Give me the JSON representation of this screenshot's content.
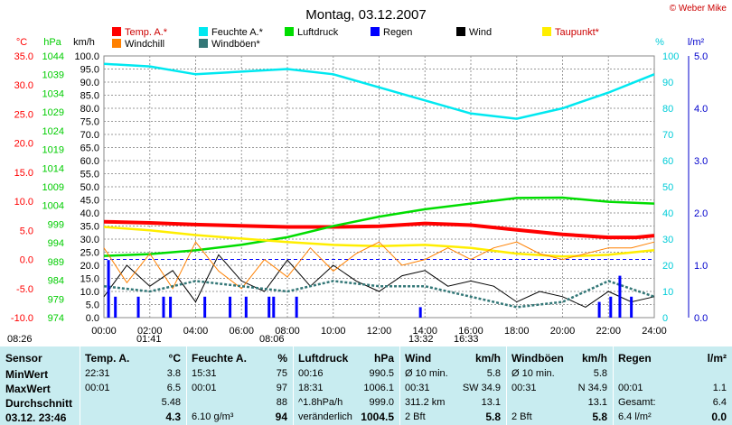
{
  "title": "Montag, 03.12.2007",
  "copyright": "© Weber Mike",
  "colors": {
    "temp": "#ff0000",
    "feuchte": "#00e8f0",
    "luftdruck": "#00dd00",
    "regen": "#0000ff",
    "wind": "#000000",
    "taupunkt": "#ffee00",
    "windchill": "#ff8000",
    "windboeen": "#337777"
  },
  "legend": [
    {
      "label": "Temp. A.*",
      "color": "#ff0000"
    },
    {
      "label": "Feuchte A.*",
      "color": "#00e8f0"
    },
    {
      "label": "Luftdruck",
      "color": "#00dd00"
    },
    {
      "label": "Regen",
      "color": "#0000ff"
    },
    {
      "label": "Wind",
      "color": "#000000"
    },
    {
      "label": "Taupunkt*",
      "color": "#ffee00"
    },
    {
      "label": "Windchill",
      "color": "#ff8000"
    },
    {
      "label": "Windböen*",
      "color": "#337777"
    }
  ],
  "chart_data": {
    "type": "line",
    "x_label_ticks": [
      "00:00",
      "02:00",
      "04:00",
      "06:00",
      "08:00",
      "10:00",
      "12:00",
      "14:00",
      "16:00",
      "18:00",
      "20:00",
      "22:00",
      "24:00"
    ],
    "axes": {
      "celsius": {
        "unit": "°C",
        "ticks": [
          "35.0",
          "30.0",
          "25.0",
          "20.0",
          "15.0",
          "10.0",
          "5.0",
          "0.0",
          "-5.0",
          "-10.0"
        ],
        "range": [
          -10,
          35
        ]
      },
      "hpa": {
        "unit": "hPa",
        "ticks": [
          "1044",
          "1039",
          "1034",
          "1029",
          "1024",
          "1019",
          "1014",
          "1009",
          "1004",
          "999",
          "994",
          "989",
          "984",
          "979",
          "974"
        ],
        "range": [
          974,
          1044
        ]
      },
      "kmh": {
        "unit": "km/h",
        "ticks": [
          "100.0",
          "95.0",
          "90.0",
          "85.0",
          "80.0",
          "75.0",
          "70.0",
          "65.0",
          "60.0",
          "55.0",
          "50.0",
          "45.0",
          "40.0",
          "35.0",
          "30.0",
          "25.0",
          "20.0",
          "15.0",
          "10.0",
          "5.0",
          "0.0"
        ],
        "range": [
          0,
          100
        ]
      },
      "percent": {
        "unit": "%",
        "ticks": [
          "100",
          "90",
          "80",
          "70",
          "60",
          "50",
          "40",
          "30",
          "20",
          "10",
          "0"
        ],
        "range": [
          0,
          100
        ]
      },
      "rain": {
        "unit": "l/m²",
        "ticks": [
          "5.0",
          "4.0",
          "3.0",
          "2.0",
          "1.0",
          "0.0"
        ],
        "range": [
          0,
          5
        ]
      }
    },
    "series": [
      {
        "name": "Temp. A.*",
        "axis": "celsius",
        "x": [
          0,
          2,
          4,
          6,
          8,
          10,
          12,
          14,
          16,
          18,
          20,
          22,
          23.2,
          24
        ],
        "y": [
          6.5,
          6.3,
          6.0,
          5.8,
          5.6,
          5.6,
          5.7,
          6.2,
          5.9,
          5.1,
          4.3,
          3.8,
          3.8,
          4.1
        ]
      },
      {
        "name": "Feuchte A.*",
        "axis": "percent",
        "x": [
          0,
          2,
          4,
          6,
          8,
          10,
          12,
          14,
          16,
          18,
          20,
          22,
          24
        ],
        "y": [
          97,
          96,
          93,
          94,
          95,
          93,
          88,
          83,
          78,
          76,
          80,
          86,
          93
        ]
      },
      {
        "name": "Luftdruck",
        "axis": "hpa",
        "x": [
          0,
          2,
          4,
          6,
          8,
          10,
          12,
          14,
          16,
          18,
          20,
          22,
          24
        ],
        "y": [
          990.5,
          991.0,
          992.0,
          993.5,
          995.5,
          998.5,
          1001.0,
          1003.0,
          1004.5,
          1006.0,
          1006.1,
          1005.0,
          1004.5
        ]
      },
      {
        "name": "Taupunkt*",
        "axis": "celsius",
        "x": [
          0,
          2,
          4,
          6,
          8,
          10,
          12,
          14,
          16,
          18,
          20,
          22,
          24
        ],
        "y": [
          5.6,
          5.0,
          4.2,
          3.6,
          3.0,
          2.5,
          2.3,
          2.5,
          2.0,
          1.0,
          0.5,
          0.8,
          1.6
        ]
      },
      {
        "name": "Wind",
        "axis": "kmh",
        "x": [
          0,
          1,
          2,
          3,
          4,
          5,
          6,
          7,
          8,
          9,
          10,
          11,
          12,
          13,
          14,
          15,
          16,
          17,
          18,
          19,
          20,
          21,
          22,
          23,
          24
        ],
        "y": [
          8,
          20,
          12,
          18,
          6,
          24,
          14,
          10,
          22,
          12,
          20,
          14,
          10,
          16,
          18,
          12,
          14,
          12,
          6,
          10,
          8,
          4,
          10,
          6,
          8
        ]
      },
      {
        "name": "Windchill",
        "axis": "celsius",
        "x": [
          0,
          1,
          2,
          3,
          4,
          5,
          6,
          7,
          8,
          9,
          10,
          11,
          12,
          13,
          14,
          15,
          16,
          17,
          18,
          19,
          20,
          21,
          22,
          23,
          24
        ],
        "y": [
          2,
          -4,
          1,
          -5,
          3,
          -2,
          -5,
          0,
          -3,
          2,
          -2,
          1,
          3,
          -1,
          0,
          2,
          0,
          2,
          3,
          1,
          0,
          1,
          2,
          2,
          3
        ]
      },
      {
        "name": "Windböen*",
        "axis": "kmh",
        "x": [
          0,
          2,
          4,
          6,
          8,
          10,
          12,
          14,
          16,
          18,
          20,
          22,
          24
        ],
        "y": [
          12,
          10,
          14,
          12,
          10,
          14,
          12,
          12,
          8,
          4,
          6,
          14,
          8
        ]
      },
      {
        "name": "Regen",
        "axis": "rain",
        "type": "bar",
        "x": [
          0.2,
          0.5,
          1.5,
          2.6,
          2.9,
          4.4,
          5.5,
          6.2,
          7.2,
          7.4,
          8.4,
          13.8,
          21.6,
          22.1,
          22.5,
          23.0
        ],
        "y": [
          1.1,
          0.4,
          0.4,
          0.4,
          0.4,
          0.4,
          0.4,
          0.4,
          0.4,
          0.4,
          0.4,
          0.2,
          0.3,
          0.4,
          0.8,
          0.4
        ]
      }
    ],
    "reference_line": {
      "axis": "celsius",
      "value": 0,
      "style": "dashed",
      "color": "#0000ff"
    },
    "grid": true
  },
  "time_markers": [
    "08:26",
    "01:41",
    "08:06",
    "13:32",
    "16:33"
  ],
  "table": {
    "col1": {
      "header": "Sensor",
      "rows": [
        "MinWert",
        "MaxWert",
        "Durchschnitt",
        "03.12. 23:46"
      ]
    },
    "col2": {
      "header": "Temp. A.",
      "unit": "°C",
      "rows": [
        [
          "22:31",
          "3.8"
        ],
        [
          "00:01",
          "6.5"
        ],
        [
          "",
          "5.48"
        ],
        [
          "",
          "4.3"
        ]
      ]
    },
    "col3": {
      "header": "Feuchte A.",
      "unit": "%",
      "rows": [
        [
          "15:31",
          "75"
        ],
        [
          "00:01",
          "97"
        ],
        [
          "",
          "88"
        ],
        [
          "6.10 g/m³",
          "94"
        ]
      ]
    },
    "col4": {
      "header": "Luftdruck",
      "unit": "hPa",
      "rows": [
        [
          "00:16",
          "990.5"
        ],
        [
          "18:31",
          "1006.1"
        ],
        [
          "^1.8hPa/h",
          "999.0"
        ],
        [
          "veränderlich",
          "1004.5"
        ]
      ]
    },
    "col5": {
      "header": "Wind",
      "unit": "km/h",
      "rows": [
        [
          "Ø 10 min.",
          "5.8"
        ],
        [
          "00:31",
          "SW 34.9"
        ],
        [
          "311.2 km",
          "13.1"
        ],
        [
          "2 Bft",
          "5.8"
        ]
      ]
    },
    "col6": {
      "header": "Windböen",
      "unit": "km/h",
      "rows": [
        [
          "Ø 10 min.",
          "5.8"
        ],
        [
          "00:31",
          "N 34.9"
        ],
        [
          "",
          "13.1"
        ],
        [
          "2 Bft",
          "5.8"
        ]
      ]
    },
    "col7": {
      "header": "Regen",
      "unit": "l/m²",
      "rows": [
        [
          "",
          ""
        ],
        [
          "00:01",
          "1.1"
        ],
        [
          "Gesamt:",
          "6.4"
        ],
        [
          "6.4 l/m²",
          "0.0"
        ]
      ]
    }
  }
}
